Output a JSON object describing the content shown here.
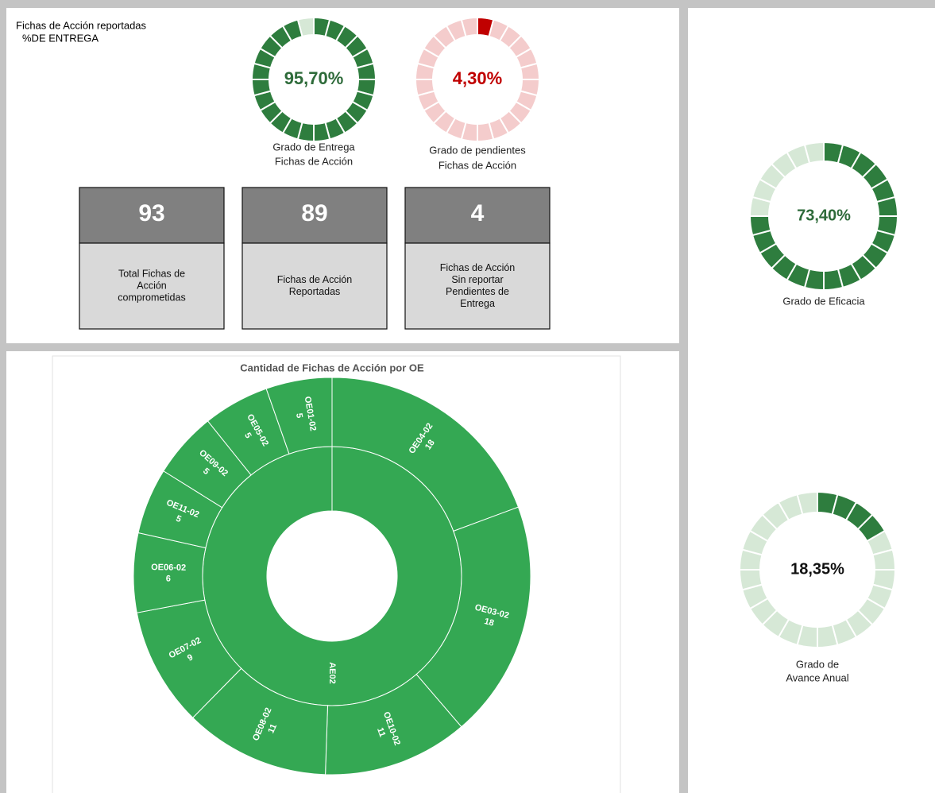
{
  "header": {
    "lines": [
      "Fichas de Acción reportadas",
      "%DE ENTREGA"
    ]
  },
  "gauges": [
    {
      "value": 95.7,
      "value_label": "95,70%",
      "label_lines": [
        "Grado de Entrega",
        "Fichas de Acción"
      ],
      "color": "#2e7d3e",
      "track_color": "#d6e8d6",
      "text_color": "#2e6b3a"
    },
    {
      "value": 4.3,
      "value_label": "4,30%",
      "label_lines": [
        "Grado de pendientes",
        "Fichas de Acción"
      ],
      "color": "#c00000",
      "track_color": "#f4cccc",
      "text_color": "#c00000"
    },
    {
      "value": 73.4,
      "value_label": "73,40%",
      "label_lines": [
        "Grado de Eficacia"
      ],
      "color": "#2e7d3e",
      "track_color": "#d6e8d6",
      "text_color": "#2e6b3a"
    },
    {
      "value": 18.35,
      "value_label": "18,35%",
      "label_lines": [
        "Grado de",
        "Avance Anual"
      ],
      "color": "#2e7d3e",
      "track_color": "#d6e8d6",
      "text_color": "#111111"
    }
  ],
  "cards": [
    {
      "value": 93,
      "lines": [
        "Total Fichas de",
        "Acción",
        "comprometidas"
      ]
    },
    {
      "value": 89,
      "lines": [
        "Fichas de Acción",
        "Reportadas"
      ]
    },
    {
      "value": 4,
      "lines": [
        "Fichas de Acción",
        "Sin reportar",
        "Pendientes de",
        "Entrega"
      ]
    }
  ],
  "chart_data": {
    "type": "sunburst",
    "title": "Cantidad de Fichas de Acción por OE",
    "root": "AE02",
    "color": "#34a853",
    "categories": [
      "OE04-02",
      "OE03-02",
      "OE10-02",
      "OE08-02",
      "OE07-02",
      "OE06-02",
      "OE11-02",
      "OE09-02",
      "OE05-02",
      "OE01-02"
    ],
    "values": [
      18,
      18,
      11,
      11,
      9,
      6,
      5,
      5,
      5,
      5
    ]
  }
}
